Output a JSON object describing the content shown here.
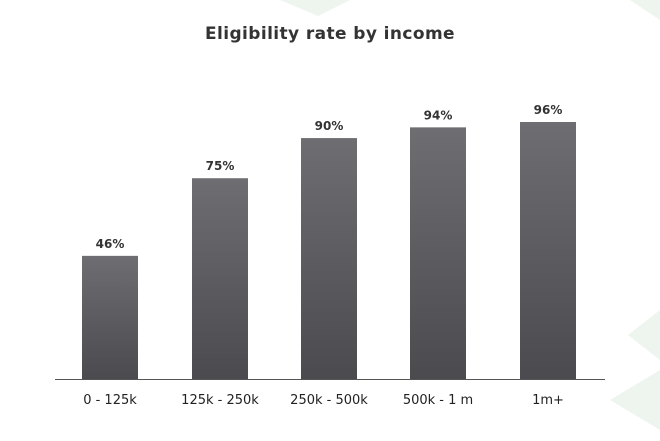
{
  "chart_data": {
    "type": "bar",
    "title": "Eligibility rate by income",
    "categories": [
      "0 - 125k",
      "125k - 250k",
      "250k - 500k",
      "500k - 1 m",
      "1m+"
    ],
    "values": [
      46,
      75,
      90,
      94,
      96
    ],
    "value_labels": [
      "46%",
      "75%",
      "90%",
      "94%",
      "96%"
    ],
    "xlabel": "",
    "ylabel": "",
    "ylim": [
      0,
      100
    ],
    "grid": false,
    "legend": "none",
    "colors": {
      "bar_top": "#6e6e72",
      "bar_bottom": "#4b4b4f",
      "axis": "#555555",
      "decor": "#eef4ee"
    }
  }
}
